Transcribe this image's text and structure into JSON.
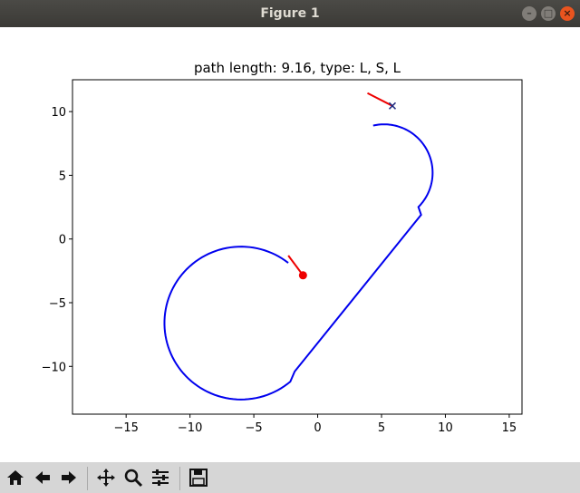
{
  "window": {
    "title": "Figure 1",
    "buttons": [
      "minimize",
      "maximize",
      "close"
    ]
  },
  "chart_data": {
    "type": "line",
    "title": "path length: 9.16, type: L, S, L",
    "xlabel": "",
    "ylabel": "",
    "xlim": [
      -19.2,
      16.0
    ],
    "ylim": [
      -13.75,
      12.5
    ],
    "xticks": [
      -15,
      -10,
      -5,
      0,
      5,
      10,
      15
    ],
    "xtick_labels": [
      "−15",
      "−10",
      "−5",
      "0",
      "5",
      "10",
      "15"
    ],
    "yticks": [
      10,
      5,
      0,
      -5,
      -10
    ],
    "ytick_labels": [
      "10",
      "5",
      "0",
      "−5",
      "−10"
    ],
    "grid": false,
    "series": [
      {
        "color": "#0000ee",
        "path": [
          {
            "segment": "L",
            "center": [
              -6.0,
              -6.6
            ],
            "radius": 6.0,
            "start_deg": 52,
            "end_deg": 310
          },
          {
            "segment": "S",
            "from": [
              -1.8,
              -10.4
            ],
            "to": [
              8.1,
              1.9
            ]
          },
          {
            "segment": "L",
            "center": [
              5.2,
              5.2
            ],
            "radius": 3.8,
            "start_deg": -45,
            "end_deg": 103
          }
        ]
      }
    ],
    "start_marker": {
      "x": -1.15,
      "y": -2.85,
      "shape": "circle",
      "color": "#ee0000"
    },
    "start_heading": {
      "from": [
        -1.15,
        -2.85
      ],
      "to": [
        -2.3,
        -1.3
      ],
      "color": "#ee0000"
    },
    "end_marker": {
      "x": 5.85,
      "y": 10.45,
      "shape": "x",
      "color": "#ee0000"
    },
    "end_heading": {
      "from": [
        5.85,
        10.45
      ],
      "to": [
        3.9,
        11.45
      ],
      "color": "#ee0000"
    }
  },
  "toolbar": {
    "buttons": [
      "home-icon",
      "back-icon",
      "forward-icon",
      "pan-icon",
      "zoom-icon",
      "configure-subplots-icon",
      "save-icon"
    ]
  }
}
